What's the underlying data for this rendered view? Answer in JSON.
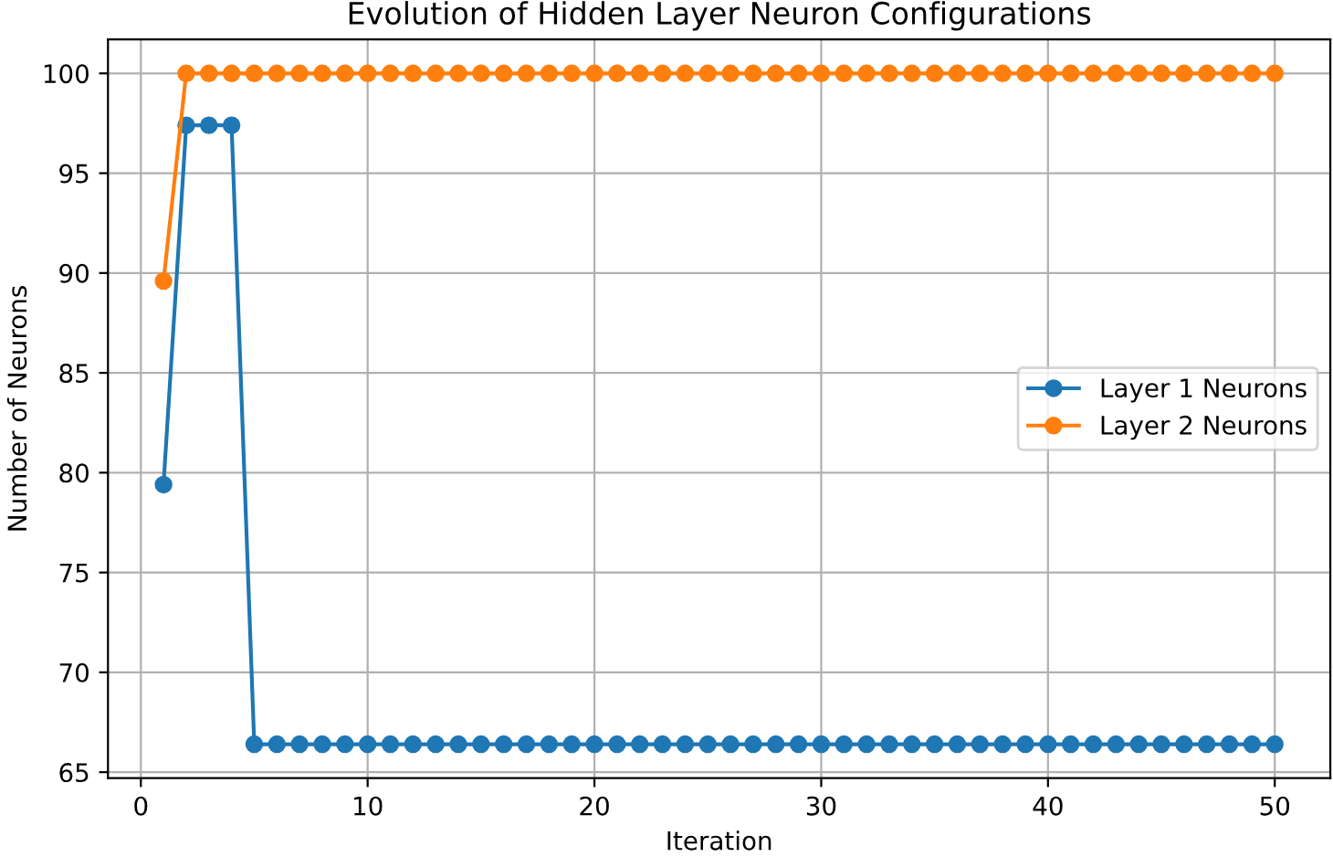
{
  "chart_data": {
    "type": "line",
    "title": "Evolution of Hidden Layer Neuron Configurations",
    "xlabel": "Iteration",
    "ylabel": "Number of Neurons",
    "x": [
      1,
      2,
      3,
      4,
      5,
      6,
      7,
      8,
      9,
      10,
      11,
      12,
      13,
      14,
      15,
      16,
      17,
      18,
      19,
      20,
      21,
      22,
      23,
      24,
      25,
      26,
      27,
      28,
      29,
      30,
      31,
      32,
      33,
      34,
      35,
      36,
      37,
      38,
      39,
      40,
      41,
      42,
      43,
      44,
      45,
      46,
      47,
      48,
      49,
      50
    ],
    "series": [
      {
        "name": "Layer 1 Neurons",
        "color": "#1f77b4",
        "values": [
          79.4,
          97.4,
          97.4,
          97.4,
          66.4,
          66.4,
          66.4,
          66.4,
          66.4,
          66.4,
          66.4,
          66.4,
          66.4,
          66.4,
          66.4,
          66.4,
          66.4,
          66.4,
          66.4,
          66.4,
          66.4,
          66.4,
          66.4,
          66.4,
          66.4,
          66.4,
          66.4,
          66.4,
          66.4,
          66.4,
          66.4,
          66.4,
          66.4,
          66.4,
          66.4,
          66.4,
          66.4,
          66.4,
          66.4,
          66.4,
          66.4,
          66.4,
          66.4,
          66.4,
          66.4,
          66.4,
          66.4,
          66.4,
          66.4,
          66.4
        ]
      },
      {
        "name": "Layer 2 Neurons",
        "color": "#ff7f0e",
        "values": [
          89.6,
          100,
          100,
          100,
          100,
          100,
          100,
          100,
          100,
          100,
          100,
          100,
          100,
          100,
          100,
          100,
          100,
          100,
          100,
          100,
          100,
          100,
          100,
          100,
          100,
          100,
          100,
          100,
          100,
          100,
          100,
          100,
          100,
          100,
          100,
          100,
          100,
          100,
          100,
          100,
          100,
          100,
          100,
          100,
          100,
          100,
          100,
          100,
          100,
          100
        ]
      }
    ],
    "xlim": [
      -1.45,
      52.45
    ],
    "ylim": [
      64.7,
      101.7
    ],
    "xticks": [
      0,
      10,
      20,
      30,
      40,
      50
    ],
    "yticks": [
      65,
      70,
      75,
      80,
      85,
      90,
      95,
      100
    ],
    "grid": true,
    "legend": "right",
    "marker": "circle",
    "line_style": "solid"
  }
}
